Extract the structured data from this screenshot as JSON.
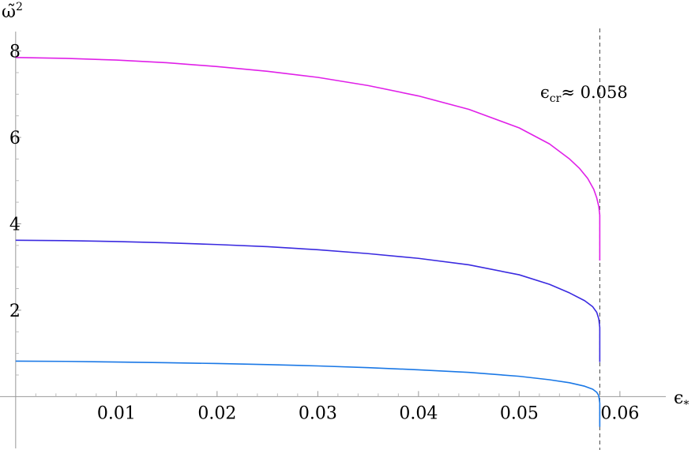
{
  "chart_data": {
    "type": "line",
    "xlabel": "ϵ",
    "xlabel_sub": "*",
    "ylabel": "ω̃",
    "ylabel_sup": "2",
    "xlim": [
      -0.0003,
      0.0655
    ],
    "ylim": [
      -1.2,
      8.45
    ],
    "x_ticks": [
      0.01,
      0.02,
      0.03,
      0.04,
      0.05,
      0.06
    ],
    "x_tick_labels": [
      "0.01",
      "0.02",
      "0.03",
      "0.04",
      "0.05",
      "0.06"
    ],
    "y_ticks": [
      2,
      4,
      6,
      8
    ],
    "y_tick_labels": [
      "2",
      "4",
      "6",
      "8"
    ],
    "grid": false,
    "critical_line": {
      "x": 0.058,
      "label": "ϵ",
      "label_sub": "cr",
      "label_rest": "≈ 0.058"
    },
    "series": [
      {
        "color": "#e020e8",
        "x": [
          0,
          0.005,
          0.01,
          0.015,
          0.02,
          0.025,
          0.03,
          0.035,
          0.04,
          0.045,
          0.05,
          0.053,
          0.055,
          0.056,
          0.0568,
          0.0574,
          0.0577,
          0.0579,
          0.058,
          0.058,
          0.058
        ],
        "y": [
          7.85,
          7.83,
          7.79,
          7.73,
          7.64,
          7.53,
          7.39,
          7.2,
          6.96,
          6.65,
          6.22,
          5.85,
          5.5,
          5.28,
          5.05,
          4.8,
          4.6,
          4.4,
          4.2,
          3.6,
          3.15
        ]
      },
      {
        "color": "#3a2ae0",
        "x": [
          0,
          0.005,
          0.01,
          0.015,
          0.02,
          0.025,
          0.03,
          0.035,
          0.04,
          0.045,
          0.05,
          0.053,
          0.055,
          0.0565,
          0.0573,
          0.0577,
          0.0579,
          0.058,
          0.058,
          0.058
        ],
        "y": [
          3.62,
          3.61,
          3.59,
          3.56,
          3.52,
          3.47,
          3.4,
          3.31,
          3.2,
          3.05,
          2.82,
          2.6,
          2.4,
          2.22,
          2.08,
          1.95,
          1.8,
          1.6,
          1.2,
          0.8
        ]
      },
      {
        "color": "#1a78e6",
        "x": [
          0,
          0.005,
          0.01,
          0.015,
          0.02,
          0.025,
          0.03,
          0.035,
          0.04,
          0.045,
          0.05,
          0.053,
          0.055,
          0.0565,
          0.0573,
          0.0577,
          0.0579,
          0.058,
          0.058,
          0.058
        ],
        "y": [
          0.82,
          0.815,
          0.8,
          0.785,
          0.765,
          0.74,
          0.71,
          0.67,
          0.62,
          0.56,
          0.47,
          0.39,
          0.32,
          0.24,
          0.17,
          0.1,
          0.02,
          -0.15,
          -0.45,
          -0.7
        ]
      }
    ]
  }
}
